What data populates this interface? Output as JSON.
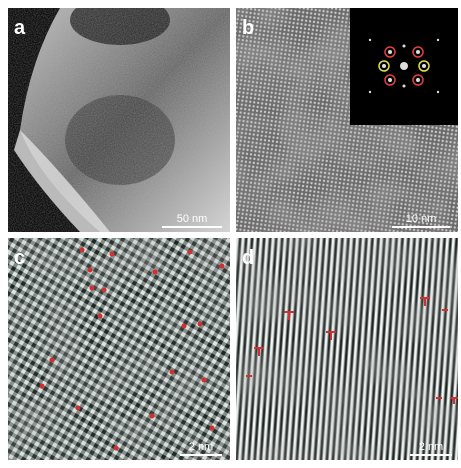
{
  "panels": [
    {
      "label": "a",
      "scale_bar": "50 nm"
    },
    {
      "label": "b",
      "scale_bar": "10 nm"
    },
    {
      "label": "c",
      "scale_bar": "2 nm"
    },
    {
      "label": "d",
      "scale_bar": "2 nm"
    }
  ]
}
